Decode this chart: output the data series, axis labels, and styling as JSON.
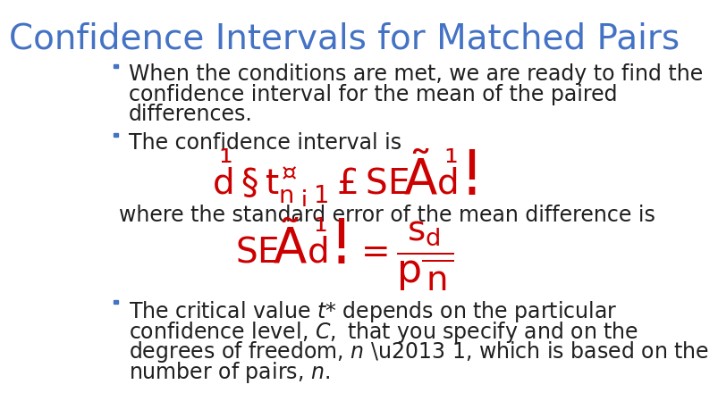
{
  "title": "Confidence Intervals for Matched Pairs",
  "title_color": "#4472C4",
  "title_fontsize": 28,
  "background_color": "#FFFFFF",
  "bullet_color": "#4472C4",
  "text_color": "#1F1F1F",
  "red_color": "#CC0000",
  "bullet1_line1": "When the conditions are met, we are ready to find the",
  "bullet1_line2": "confidence interval for the mean of the paired",
  "bullet1_line3": "differences.",
  "bullet2_line1": "The confidence interval is",
  "where_text": "where the standard error of the mean difference is",
  "bullet3_line1": "The critical value t* depends on the particular",
  "bullet3_line2": "confidence level, C, that you specify and on the",
  "bullet3_line3": "degrees of freedom, n – 1, which is based on the",
  "bullet3_line4": "number of pairs, n.",
  "text_fontsize": 17,
  "formula_fontsize": 28
}
